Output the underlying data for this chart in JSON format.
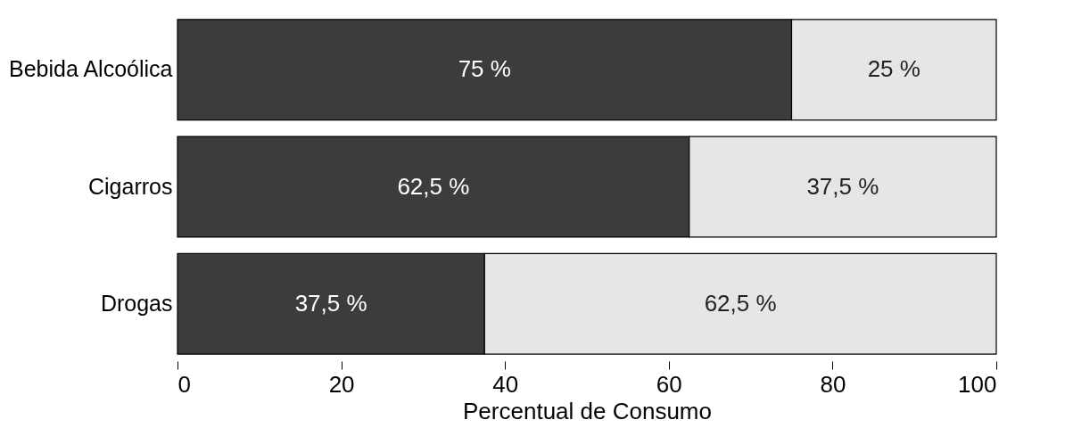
{
  "chart_data": {
    "type": "bar",
    "orientation": "horizontal",
    "stacked": true,
    "xlabel": "Percentual de Consumo",
    "categories": [
      "Bebida Alcoólica",
      "Cigarros",
      "Drogas"
    ],
    "series": [
      {
        "color": "#3c3c3c",
        "values": [
          75,
          62.5,
          37.5
        ],
        "value_labels": [
          "75 %",
          "62,5 %",
          "37,5 %"
        ]
      },
      {
        "color": "#e6e6e6",
        "values": [
          25,
          37.5,
          62.5
        ],
        "value_labels": [
          "25 %",
          "37,5 %",
          "62,5 %"
        ]
      }
    ],
    "xlim": [
      0,
      100
    ],
    "xticks": [
      0,
      20,
      40,
      60,
      80,
      100
    ],
    "grid": false
  }
}
